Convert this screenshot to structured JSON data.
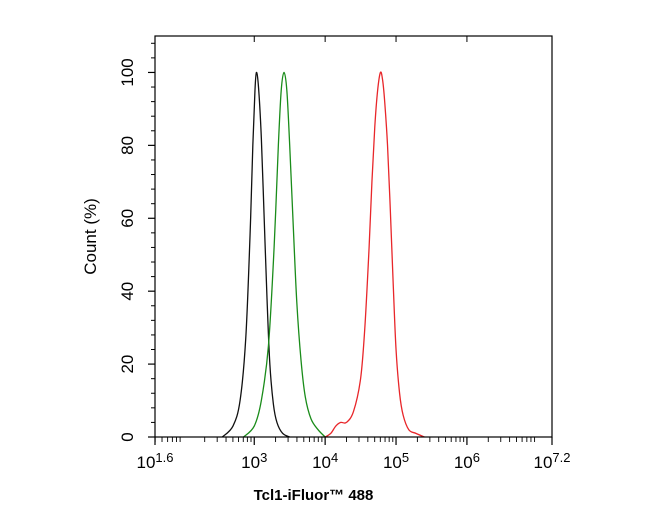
{
  "chart_data": {
    "type": "line",
    "title": "",
    "xlabel": "Tcl1-iFluor™ 488",
    "ylabel": "Count (%)",
    "x_scale": "log10",
    "xlim": [
      1.6,
      7.2
    ],
    "ylim": [
      0,
      110
    ],
    "grid": false,
    "legend": "none",
    "x_ticks": [
      {
        "value": 1.6,
        "base": "10",
        "exp": "1.6"
      },
      {
        "value": 3,
        "base": "10",
        "exp": "3"
      },
      {
        "value": 4,
        "base": "10",
        "exp": "4"
      },
      {
        "value": 5,
        "base": "10",
        "exp": "5"
      },
      {
        "value": 6,
        "base": "10",
        "exp": "6"
      },
      {
        "value": 7.2,
        "base": "10",
        "exp": "7.2"
      }
    ],
    "y_ticks": [
      0,
      20,
      40,
      60,
      80,
      100
    ],
    "series": [
      {
        "color": "#111111",
        "x_log10": [
          2.55,
          2.7,
          2.8,
          2.88,
          2.94,
          2.98,
          3.01,
          3.03,
          3.06,
          3.1,
          3.14,
          3.18,
          3.22,
          3.27,
          3.32,
          3.4,
          3.5
        ],
        "values": [
          0,
          3,
          10,
          27,
          55,
          80,
          95,
          100,
          96,
          82,
          60,
          38,
          20,
          9,
          4,
          1,
          0
        ]
      },
      {
        "color": "#1a8c1a",
        "x_log10": [
          2.85,
          3.0,
          3.1,
          3.2,
          3.28,
          3.34,
          3.38,
          3.42,
          3.46,
          3.5,
          3.55,
          3.6,
          3.66,
          3.72,
          3.8,
          3.9,
          4.0
        ],
        "values": [
          0,
          3,
          10,
          25,
          52,
          80,
          95,
          100,
          95,
          80,
          58,
          37,
          21,
          11,
          5,
          2,
          0
        ]
      },
      {
        "color": "#e8262a",
        "x_log10": [
          4.0,
          4.08,
          4.15,
          4.22,
          4.3,
          4.4,
          4.5,
          4.56,
          4.62,
          4.66,
          4.7,
          4.74,
          4.78,
          4.81,
          4.84,
          4.88,
          4.92,
          4.96,
          5.0,
          5.05,
          5.1,
          5.18,
          5.28,
          5.4
        ],
        "values": [
          0,
          1,
          3,
          4,
          4,
          7,
          16,
          30,
          52,
          70,
          85,
          95,
          100,
          98,
          92,
          80,
          62,
          42,
          24,
          12,
          6,
          2,
          1,
          0
        ]
      }
    ]
  }
}
